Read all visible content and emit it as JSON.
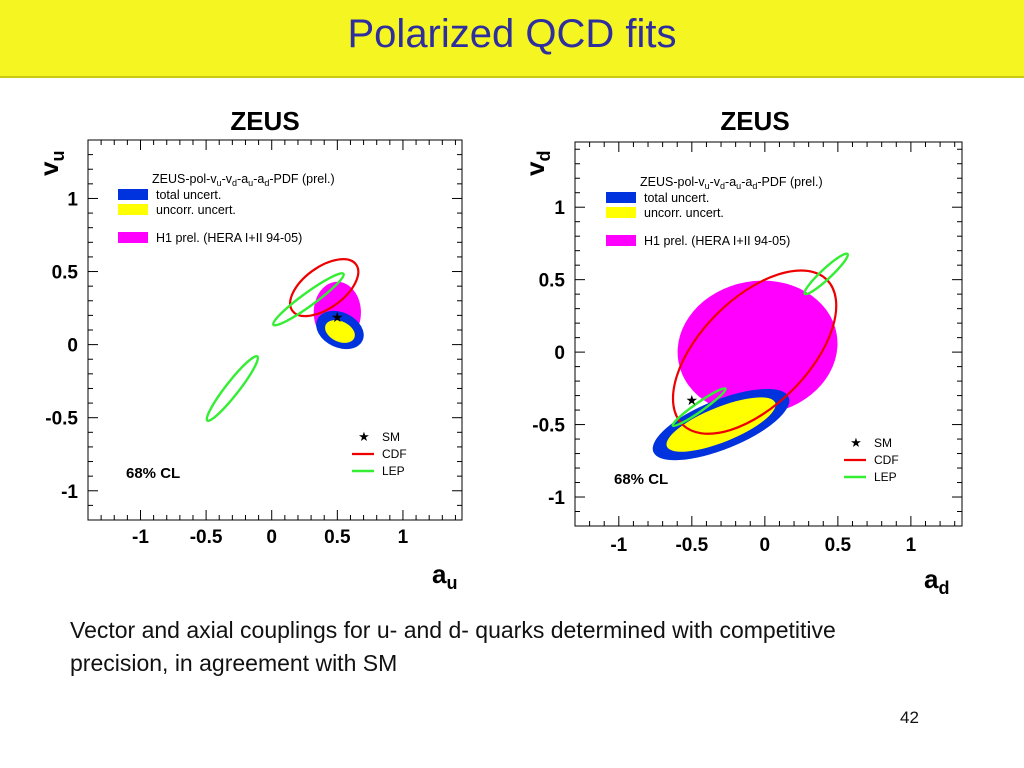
{
  "slide": {
    "title": "Polarized QCD fits",
    "caption": "Vector and axial couplings for u- and d- quarks determined with competitive precision, in agreement with SM",
    "page_number": "42"
  },
  "colors": {
    "title_bg": "#f5f522",
    "title_text": "#2e2e9e",
    "total_uncert": "#0033dd",
    "uncorr_uncert": "#ffff00",
    "h1": "#ff00ff",
    "sm": "#000000",
    "cdf": "#ee0000",
    "lep": "#33ee33"
  },
  "chart_data": [
    {
      "type": "scatter",
      "title": "ZEUS",
      "xlabel": "a",
      "xlabel_sub": "u",
      "ylabel": "v",
      "ylabel_sub": "u",
      "xlim": [
        -1.4,
        1.45
      ],
      "ylim": [
        -1.2,
        1.4
      ],
      "xticks": [
        "-1",
        "-0.5",
        "0",
        "0.5",
        "1"
      ],
      "yticks": [
        "1",
        "0.5",
        "0",
        "-0.5",
        "-1"
      ],
      "xtick_values": [
        -1,
        -0.5,
        0,
        0.5,
        1
      ],
      "ytick_values": [
        1,
        0.5,
        0,
        -0.5,
        -1
      ],
      "cl_label": "68% CL",
      "legend_top": [
        {
          "label": "ZEUS-pol-v",
          "subs": [
            "u",
            "d",
            "u",
            "d"
          ],
          "text": "ZEUS-pol-vu-vd-au-ad-PDF (prel.)"
        },
        {
          "label": "total uncert.",
          "color_key": "total_uncert"
        },
        {
          "label": "uncorr. uncert.",
          "color_key": "uncorr_uncert"
        },
        {
          "label": "H1 prel. (HERA I+II 94-05)",
          "color_key": "h1"
        }
      ],
      "legend_bottom": [
        {
          "label": "SM",
          "marker": "star"
        },
        {
          "label": "CDF",
          "color_key": "cdf"
        },
        {
          "label": "LEP",
          "color_key": "lep"
        }
      ],
      "sm_point": {
        "x": 0.5,
        "y": 0.19
      },
      "regions": {
        "h1": {
          "cx": 0.5,
          "cy": 0.22,
          "rx": 0.18,
          "ry": 0.21,
          "rot": 0
        },
        "total_uncert": {
          "cx": 0.52,
          "cy": 0.1,
          "rx": 0.19,
          "ry": 0.12,
          "rot": 25
        },
        "uncorr_uncert": {
          "cx": 0.52,
          "cy": 0.09,
          "rx": 0.12,
          "ry": 0.07,
          "rot": 25
        },
        "cdf": {
          "cx": 0.4,
          "cy": 0.39,
          "rx": 0.3,
          "ry": 0.14,
          "rot": -36
        },
        "lep": [
          {
            "cx": 0.28,
            "cy": 0.31,
            "rx": 0.33,
            "ry": 0.045,
            "rot": -36
          },
          {
            "cx": -0.3,
            "cy": -0.3,
            "rx": 0.31,
            "ry": 0.045,
            "rot": -52
          }
        ]
      }
    },
    {
      "type": "scatter",
      "title": "ZEUS",
      "xlabel": "a",
      "xlabel_sub": "d",
      "ylabel": "v",
      "ylabel_sub": "d",
      "xlim": [
        -1.3,
        1.35
      ],
      "ylim": [
        -1.2,
        1.45
      ],
      "xticks": [
        "-1",
        "-0.5",
        "0",
        "0.5",
        "1"
      ],
      "yticks": [
        "1",
        "0.5",
        "0",
        "-0.5",
        "-1"
      ],
      "xtick_values": [
        -1,
        -0.5,
        0,
        0.5,
        1
      ],
      "ytick_values": [
        1,
        0.5,
        0,
        -0.5,
        -1
      ],
      "cl_label": "68% CL",
      "legend_top": [
        {
          "label": "ZEUS-pol-v",
          "subs": [
            "u",
            "d",
            "u",
            "d"
          ],
          "text": "ZEUS-pol-vu-vd-au-ad-PDF (prel.)"
        },
        {
          "label": "total uncert.",
          "color_key": "total_uncert"
        },
        {
          "label": "uncorr. uncert.",
          "color_key": "uncorr_uncert"
        },
        {
          "label": "H1 prel. (HERA I+II 94-05)",
          "color_key": "h1"
        }
      ],
      "legend_bottom": [
        {
          "label": "SM",
          "marker": "star"
        },
        {
          "label": "CDF",
          "color_key": "cdf"
        },
        {
          "label": "LEP",
          "color_key": "lep"
        }
      ],
      "sm_point": {
        "x": -0.5,
        "y": -0.33
      },
      "regions": {
        "h1": {
          "cx": -0.05,
          "cy": 0.03,
          "rx": 0.55,
          "ry": 0.46,
          "rot": -10
        },
        "total_uncert": {
          "cx": -0.3,
          "cy": -0.5,
          "rx": 0.5,
          "ry": 0.17,
          "rot": -22
        },
        "uncorr_uncert": {
          "cx": -0.3,
          "cy": -0.5,
          "rx": 0.4,
          "ry": 0.12,
          "rot": -22
        },
        "cdf": {
          "cx": -0.07,
          "cy": 0.0,
          "rx": 0.7,
          "ry": 0.37,
          "rot": -45
        },
        "lep": [
          {
            "cx": 0.42,
            "cy": 0.54,
            "rx": 0.2,
            "ry": 0.035,
            "rot": -43
          },
          {
            "cx": -0.45,
            "cy": -0.38,
            "rx": 0.22,
            "ry": 0.03,
            "rot": -35
          }
        ]
      }
    }
  ]
}
